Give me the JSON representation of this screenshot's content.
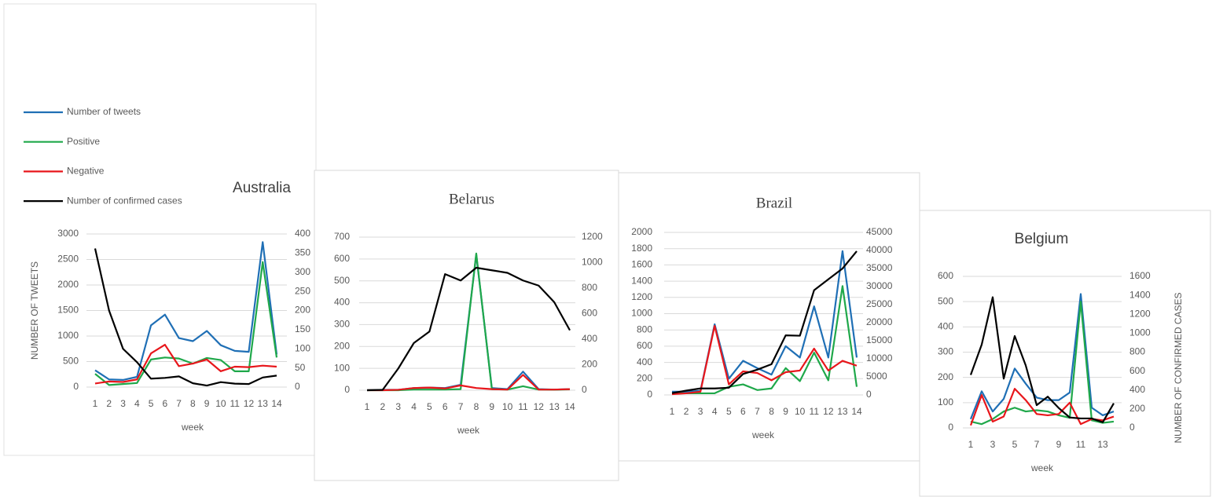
{
  "chart_data": [
    {
      "type": "line",
      "title": "Australia",
      "xlabel": "week",
      "ylabel": "NUMBER OF TWEETS",
      "categories": [
        "1",
        "2",
        "3",
        "4",
        "5",
        "6",
        "7",
        "8",
        "9",
        "10",
        "11",
        "12",
        "13",
        "14"
      ],
      "ylim": [
        0,
        3000
      ],
      "yticks": [
        0,
        500,
        1000,
        1500,
        2000,
        2500,
        3000
      ],
      "y2lim": [
        0,
        400
      ],
      "y2ticks": [
        0,
        50,
        100,
        150,
        200,
        250,
        300,
        350,
        400
      ],
      "series": [
        {
          "name": "Number of tweets",
          "color": "#1f6fb5",
          "values": [
            330,
            150,
            140,
            200,
            1210,
            1420,
            960,
            900,
            1100,
            820,
            710,
            690,
            2840,
            640
          ]
        },
        {
          "name": "Positive",
          "color": "#1fa84a",
          "values": [
            260,
            40,
            60,
            80,
            540,
            580,
            560,
            460,
            570,
            530,
            310,
            310,
            2450,
            580
          ]
        },
        {
          "name": "Negative",
          "color": "#e8161b",
          "values": [
            70,
            110,
            100,
            150,
            660,
            830,
            410,
            460,
            540,
            310,
            400,
            390,
            420,
            400
          ]
        },
        {
          "name": "Number of confirmed cases",
          "color": "#000000",
          "axis": "y2",
          "values": [
            362,
            200,
            100,
            65,
            22,
            24,
            28,
            10,
            4,
            13,
            9,
            8,
            25,
            30
          ]
        }
      ]
    },
    {
      "type": "line",
      "title": "Belarus",
      "xlabel": "week",
      "categories": [
        "1",
        "2",
        "3",
        "4",
        "5",
        "6",
        "7",
        "8",
        "9",
        "10",
        "11",
        "12",
        "13",
        "14"
      ],
      "ylim": [
        0,
        700
      ],
      "yticks": [
        0,
        100,
        200,
        300,
        400,
        500,
        600,
        700
      ],
      "y2lim": [
        0,
        1200
      ],
      "y2ticks": [
        0,
        200,
        400,
        600,
        800,
        1000,
        1200
      ],
      "series": [
        {
          "color": "#1f6fb5",
          "values": [
            0,
            2,
            2,
            10,
            12,
            10,
            25,
            620,
            10,
            5,
            85,
            5,
            3,
            5
          ]
        },
        {
          "color": "#1fa84a",
          "values": [
            0,
            0,
            0,
            3,
            3,
            3,
            5,
            625,
            5,
            3,
            18,
            3,
            2,
            4
          ]
        },
        {
          "color": "#e8161b",
          "values": [
            0,
            0,
            2,
            10,
            12,
            8,
            22,
            10,
            5,
            3,
            70,
            3,
            3,
            5
          ]
        },
        {
          "color": "#000000",
          "axis": "y2",
          "values": [
            0,
            3,
            170,
            370,
            460,
            910,
            860,
            960,
            940,
            920,
            860,
            820,
            690,
            470
          ]
        }
      ]
    },
    {
      "type": "line",
      "title": "Brazil",
      "xlabel": "week",
      "categories": [
        "1",
        "2",
        "3",
        "4",
        "5",
        "6",
        "7",
        "8",
        "9",
        "10",
        "11",
        "12",
        "13",
        "14"
      ],
      "ylim": [
        0,
        2000
      ],
      "yticks": [
        0,
        200,
        400,
        600,
        800,
        1000,
        1200,
        1400,
        1600,
        1800,
        2000
      ],
      "y2lim": [
        0,
        45000
      ],
      "y2ticks": [
        0,
        5000,
        10000,
        15000,
        20000,
        25000,
        30000,
        35000,
        40000,
        45000
      ],
      "series": [
        {
          "color": "#1f6fb5",
          "values": [
            40,
            40,
            50,
            870,
            200,
            420,
            330,
            250,
            600,
            460,
            1090,
            460,
            1770,
            460
          ]
        },
        {
          "color": "#1fa84a",
          "values": [
            20,
            20,
            20,
            20,
            100,
            130,
            60,
            80,
            330,
            170,
            520,
            180,
            1340,
            100
          ]
        },
        {
          "color": "#e8161b",
          "values": [
            10,
            20,
            40,
            850,
            130,
            290,
            270,
            180,
            280,
            300,
            570,
            300,
            420,
            360
          ]
        },
        {
          "color": "#000000",
          "axis": "y2",
          "values": [
            500,
            1200,
            1800,
            1800,
            2000,
            5800,
            7000,
            8500,
            16500,
            16400,
            29000,
            32000,
            35000,
            39800
          ]
        }
      ]
    },
    {
      "type": "line",
      "title": "Belgium",
      "xlabel": "week",
      "y2label": "NUMBER OF CONFIRMED CASES",
      "categories": [
        "1",
        null,
        "3",
        null,
        "5",
        null,
        "7",
        null,
        "9",
        null,
        "11",
        null,
        "13",
        null
      ],
      "ylim": [
        0,
        600
      ],
      "yticks": [
        0,
        100,
        200,
        300,
        400,
        500,
        600
      ],
      "y2lim": [
        0,
        1600
      ],
      "y2ticks": [
        0,
        200,
        400,
        600,
        800,
        1000,
        1200,
        1400,
        1600
      ],
      "series": [
        {
          "color": "#1f6fb5",
          "values": [
            35,
            145,
            65,
            115,
            235,
            175,
            120,
            110,
            110,
            140,
            530,
            80,
            50,
            65
          ]
        },
        {
          "color": "#1fa84a",
          "values": [
            25,
            15,
            35,
            65,
            80,
            65,
            70,
            65,
            50,
            40,
            500,
            30,
            20,
            25
          ]
        },
        {
          "color": "#e8161b",
          "values": [
            10,
            130,
            25,
            45,
            155,
            110,
            55,
            50,
            55,
            100,
            15,
            35,
            30,
            45
          ]
        },
        {
          "color": "#000000",
          "axis": "y2",
          "values": [
            560,
            880,
            1380,
            520,
            970,
            660,
            240,
            330,
            210,
            110,
            100,
            100,
            60,
            260
          ]
        }
      ]
    }
  ]
}
